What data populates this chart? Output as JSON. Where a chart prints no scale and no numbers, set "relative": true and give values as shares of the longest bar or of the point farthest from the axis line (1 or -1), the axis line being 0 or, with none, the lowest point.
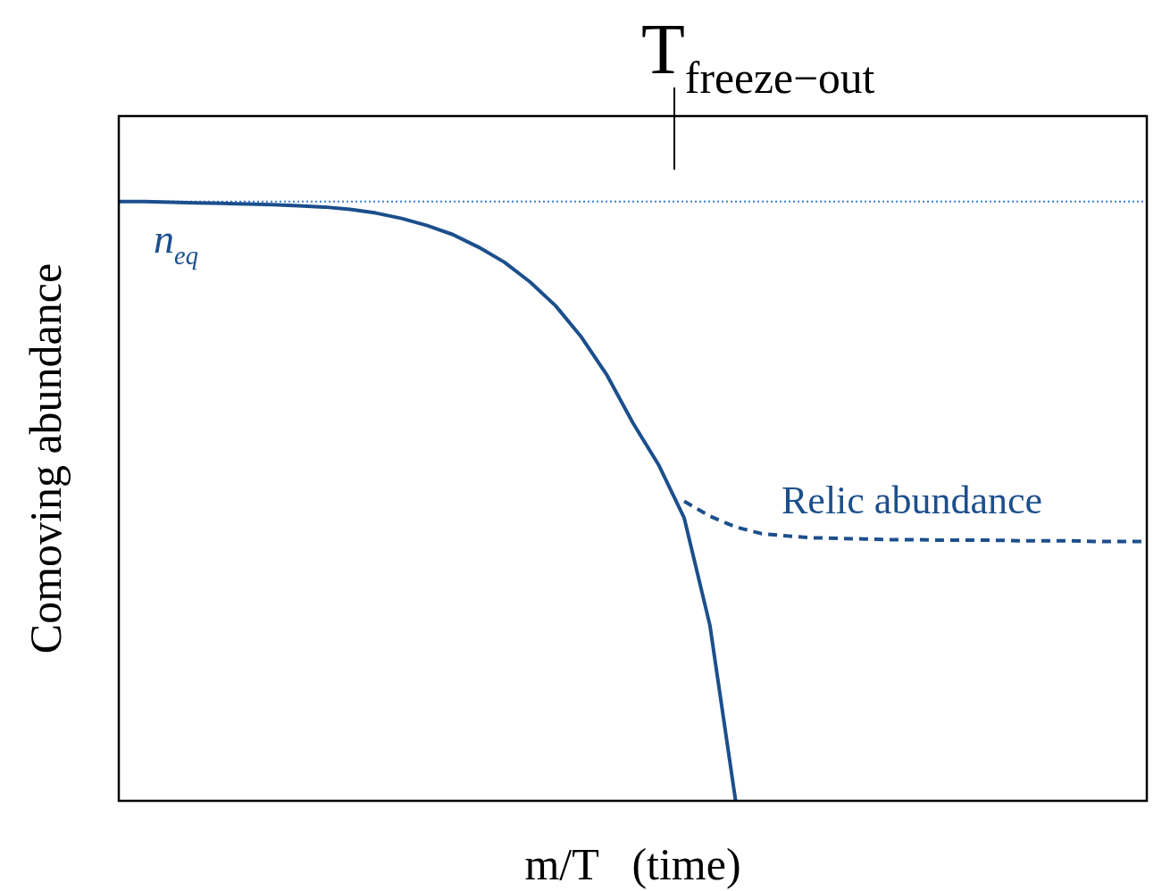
{
  "chart_data": {
    "type": "line",
    "relative": true,
    "xlabel": "m/T   (time)",
    "ylabel": "Comoving abundance",
    "annotations": [
      "T$_{freeze−out}$"
    ],
    "categories": [
      null,
      null,
      null,
      null,
      null,
      null,
      null,
      null,
      null,
      null,
      null,
      null,
      null,
      null,
      null,
      null,
      null,
      null,
      null,
      null,
      null,
      null,
      null,
      null,
      null,
      null,
      null,
      null,
      null,
      null,
      null,
      null,
      null,
      null,
      null,
      null,
      null,
      null,
      null,
      null,
      null
    ],
    "series": [
      {
        "name": "n$_{eq}$",
        "color": "#1c4f8c",
        "line_style": "solid",
        "values": [
          1,
          1,
          0.999,
          0.998,
          0.997,
          0.996,
          0.995,
          0.993,
          0.991,
          0.987,
          0.981,
          0.972,
          0.96,
          0.945,
          0.924,
          0.899,
          0.866,
          0.826,
          0.774,
          0.71,
          0.631,
          0.561,
          0.472,
          0.293,
          0,
          null,
          null,
          null,
          null,
          null,
          null,
          null,
          null,
          null,
          null,
          null,
          null,
          null,
          null,
          null,
          null
        ]
      },
      {
        "name": "Relic abundance",
        "color": "#1c4f8c",
        "line_style": "dashed",
        "values": [
          null,
          null,
          null,
          null,
          null,
          null,
          null,
          null,
          null,
          null,
          null,
          null,
          null,
          null,
          null,
          null,
          null,
          null,
          null,
          null,
          null,
          null,
          0.5,
          0.475,
          0.457,
          0.446,
          0.442,
          0.439,
          0.438,
          0.437,
          0.436,
          0.436,
          0.435,
          0.435,
          0.435,
          0.434,
          0.434,
          0.434,
          0.433,
          0.433,
          0.433
        ]
      }
    ],
    "ref_lines": [
      {
        "axis": "y",
        "value": 1,
        "color": "#3b7dd8",
        "line_style": "dotted"
      }
    ],
    "legend": false
  }
}
